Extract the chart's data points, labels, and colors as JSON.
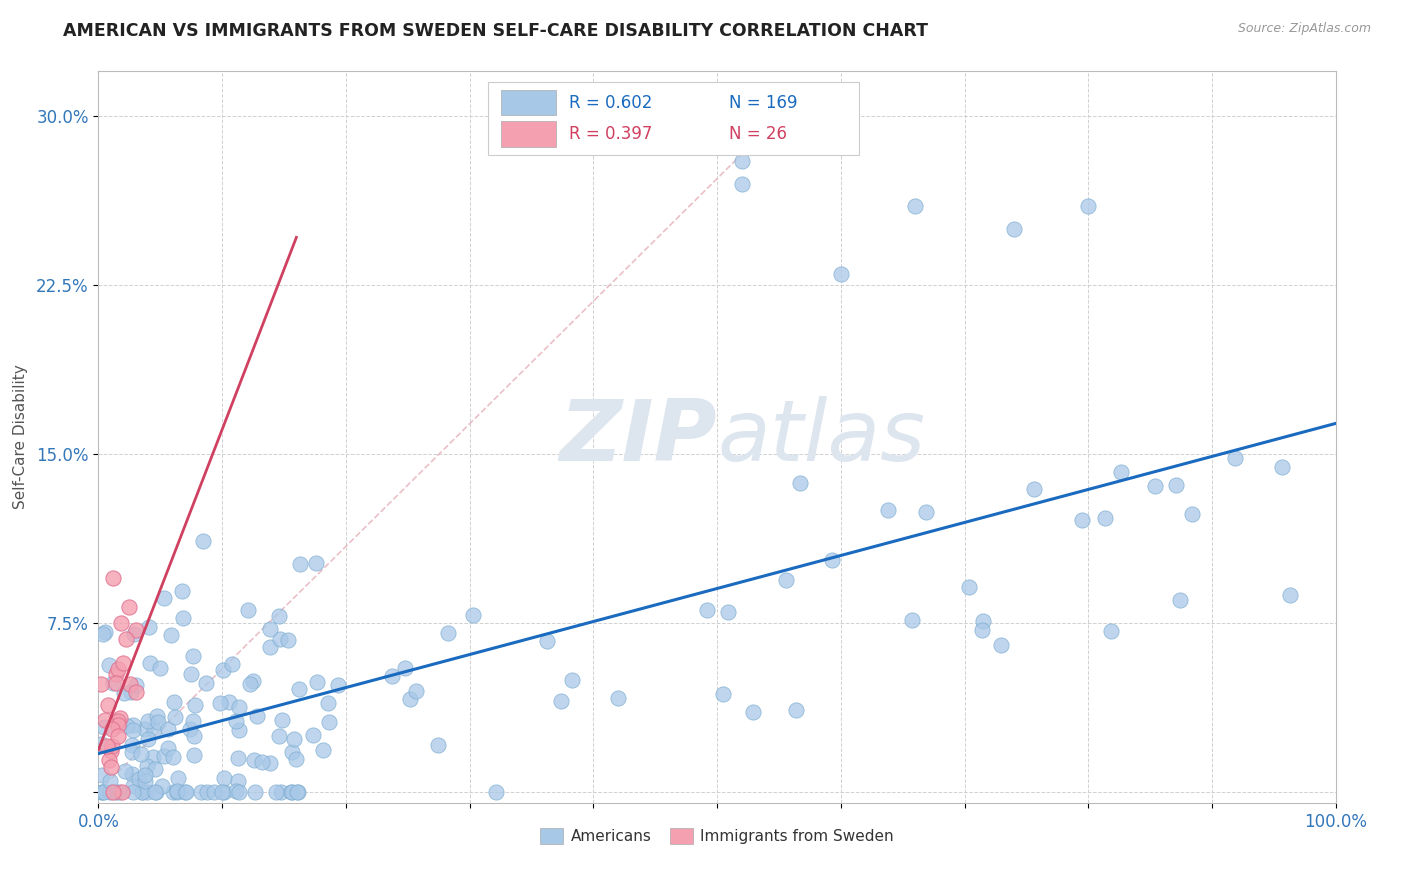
{
  "title": "AMERICAN VS IMMIGRANTS FROM SWEDEN SELF-CARE DISABILITY CORRELATION CHART",
  "source": "Source: ZipAtlas.com",
  "ylabel": "Self-Care Disability",
  "xlim": [
    0,
    1.0
  ],
  "ylim": [
    -0.005,
    0.32
  ],
  "yticks": [
    0.0,
    0.075,
    0.15,
    0.225,
    0.3
  ],
  "ytick_labels": [
    "",
    "7.5%",
    "15.0%",
    "22.5%",
    "30.0%"
  ],
  "xtick_labels": [
    "0.0%",
    "",
    "",
    "",
    "",
    "",
    "",
    "",
    "",
    "",
    "100.0%"
  ],
  "american_R": 0.602,
  "american_N": 169,
  "sweden_R": 0.397,
  "sweden_N": 26,
  "bg_color": "#ffffff",
  "grid_color": "#cccccc",
  "american_color": "#a8c8e8",
  "american_edge_color": "#7aabcf",
  "american_line_color": "#1a6bbf",
  "sweden_color": "#f4a0b0",
  "sweden_edge_color": "#e07090",
  "sweden_line_color": "#d04060",
  "diag_line_color": "#e8b8c0",
  "watermark_color": "#dde5ef",
  "legend_R_color_am": "#1a6bbf",
  "legend_R_color_sw": "#d04060"
}
